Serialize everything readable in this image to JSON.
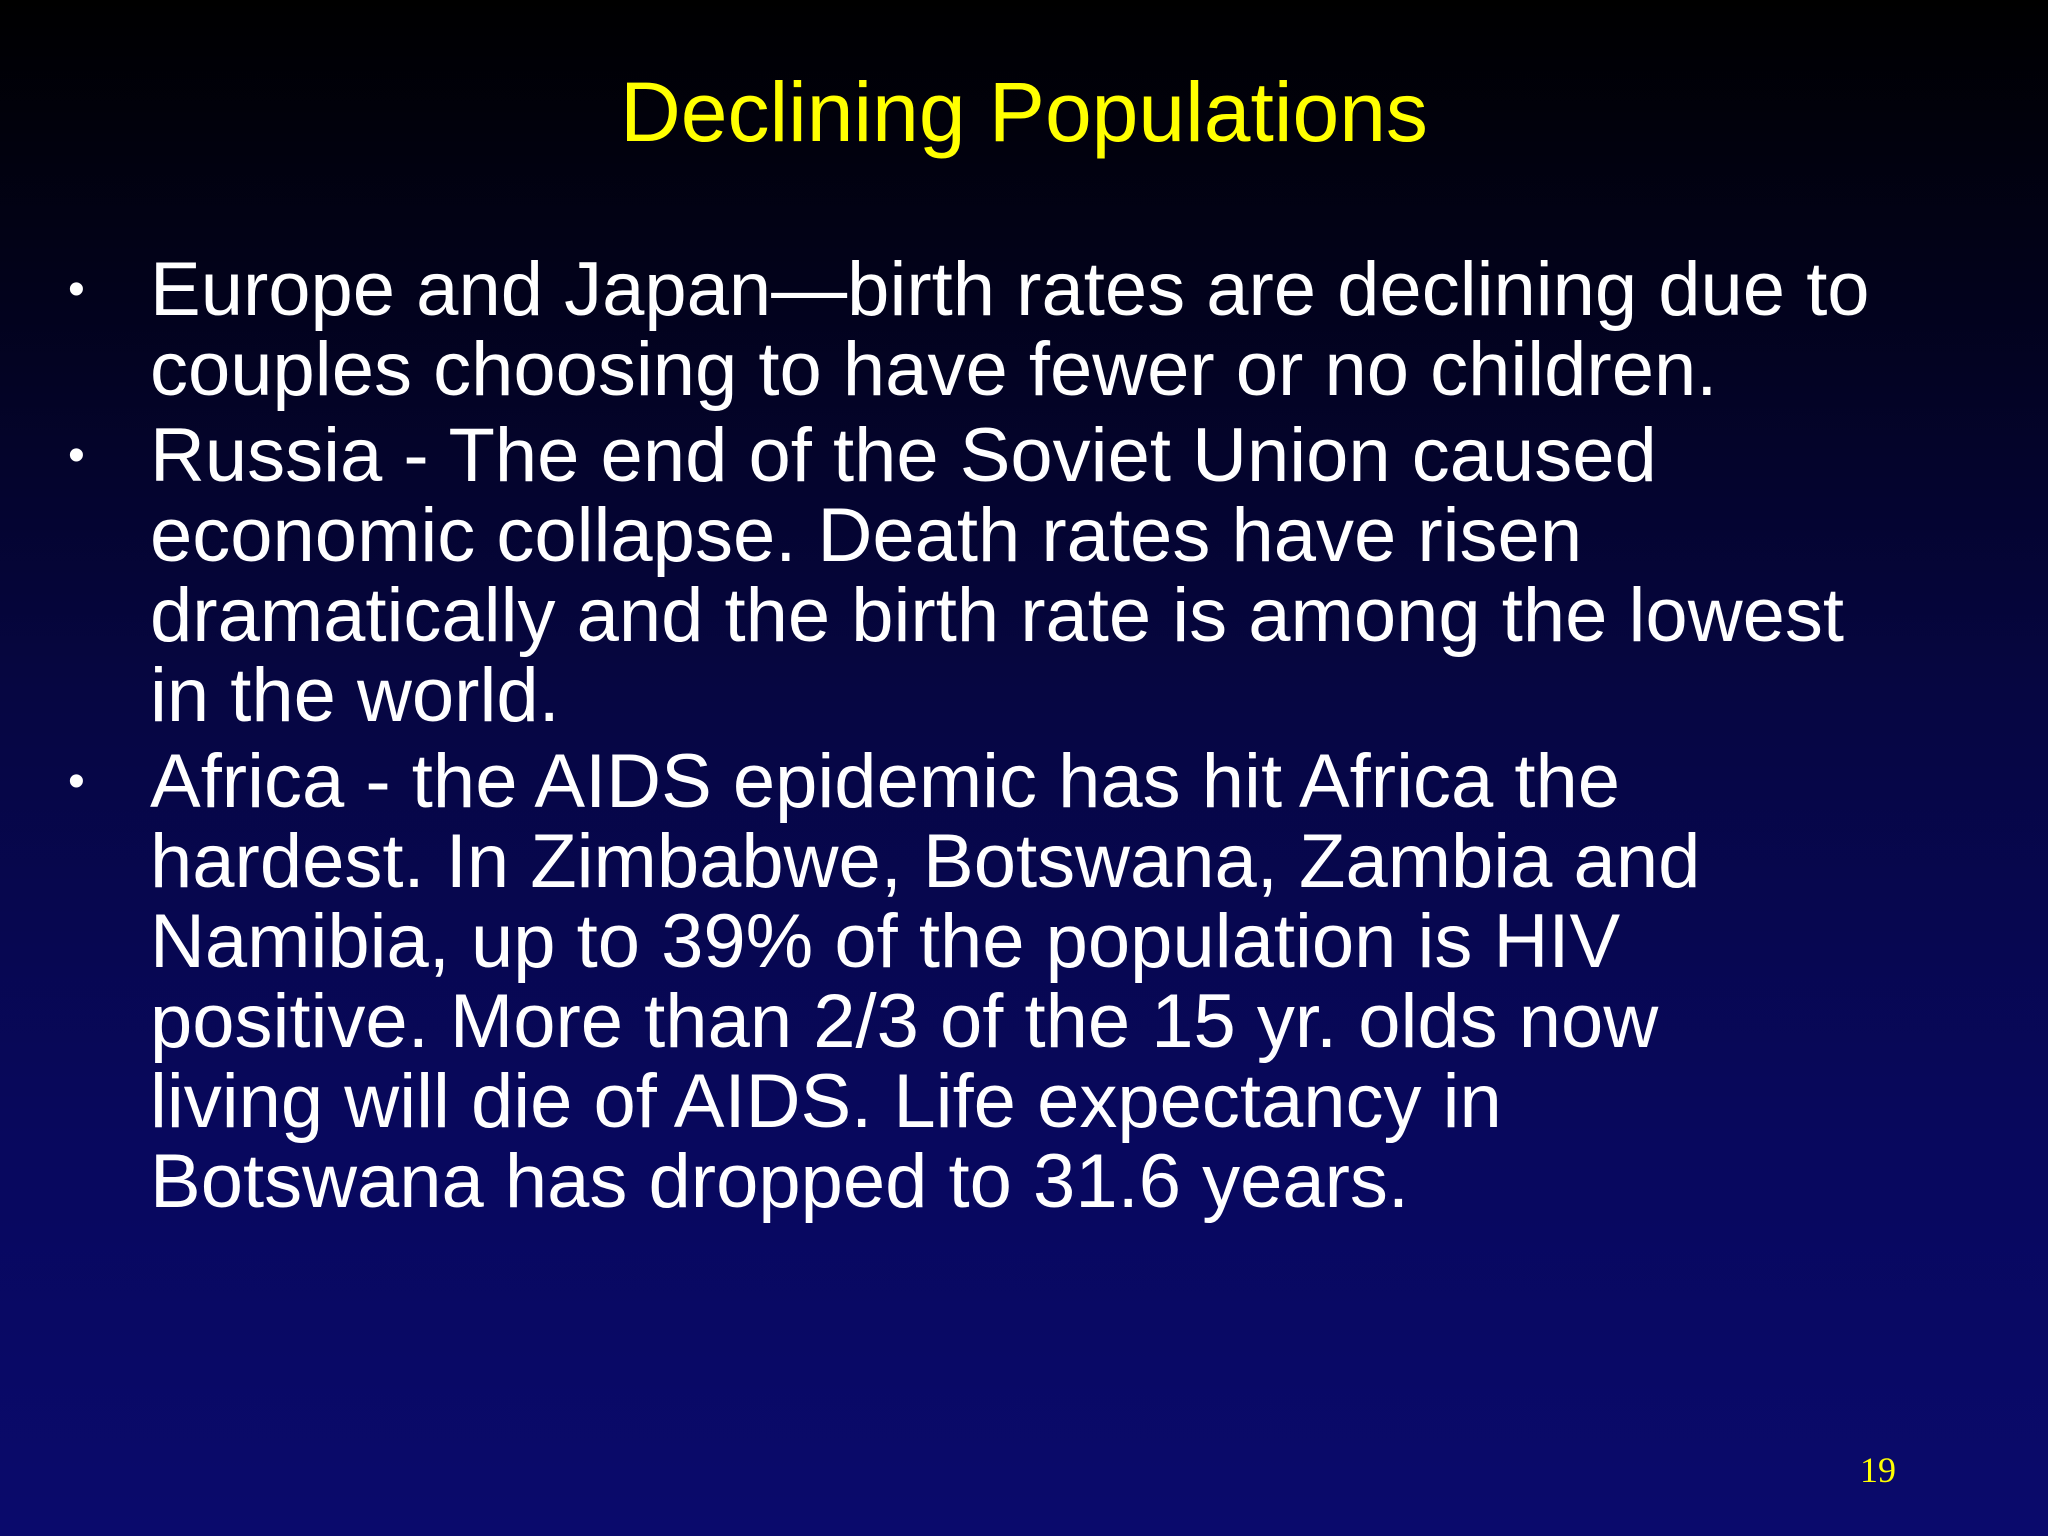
{
  "slide": {
    "title": "Declining Populations",
    "bullets": [
      {
        "marker": "•",
        "text": "Europe and Japan—birth rates are declining due to\ncouples choosing to have fewer or no children."
      },
      {
        "marker": "•",
        "text": "Russia - The end of the Soviet Union caused\neconomic collapse.  Death rates have risen\ndramatically and the birth rate is among the lowest\nin the world."
      },
      {
        "marker": "•",
        "text": "Africa -  the AIDS epidemic has hit Africa the\nhardest.  In Zimbabwe, Botswana, Zambia and\nNamibia, up to 39% of the population is HIV\npositive.  More than 2/3 of the 15 yr. olds now\nliving will die of AIDS.  Life expectancy in\nBotswana has dropped to 31.6 years."
      }
    ],
    "page_number": "19",
    "colors": {
      "title": "#ffff00",
      "body_text": "#ffffff",
      "background_top": "#000000",
      "background_bottom": "#0a0a6c"
    }
  }
}
